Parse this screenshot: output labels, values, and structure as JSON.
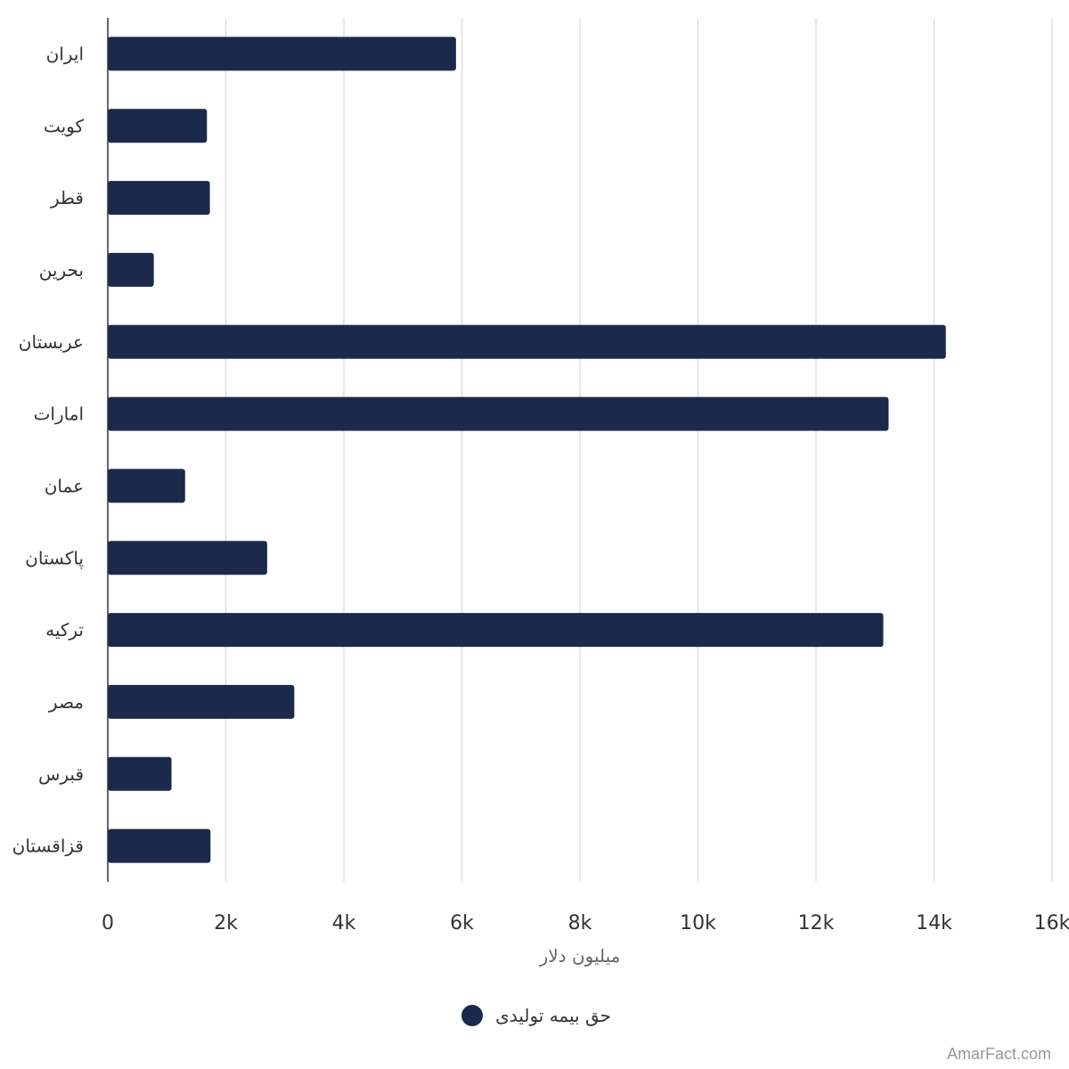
{
  "chart_data": {
    "type": "bar",
    "orientation": "horizontal",
    "categories": [
      "ایران",
      "کویت",
      "قطر",
      "بحرین",
      "عربستان",
      "امارات",
      "عمان",
      "پاکستان",
      "ترکیه",
      "مصر",
      "قبرس",
      "قزاقستان"
    ],
    "series": [
      {
        "name": "حق بیمه تولیدی",
        "values": [
          5900,
          1680,
          1730,
          780,
          14200,
          13230,
          1310,
          2700,
          13140,
          3160,
          1080,
          1740
        ]
      }
    ],
    "xlabel": "میلیون دلار",
    "ylabel": "",
    "xlim": [
      0,
      16000
    ],
    "x_ticks": [
      "0",
      "2k",
      "4k",
      "6k",
      "8k",
      "10k",
      "12k",
      "14k",
      "16k"
    ],
    "grid": true,
    "legend_position": "bottom",
    "bar_color": "#1b2a4a"
  },
  "credit": "AmarFact.com"
}
